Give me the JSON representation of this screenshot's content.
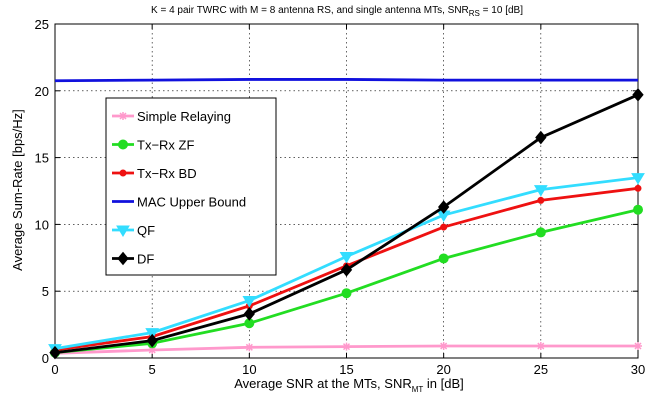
{
  "chart_data": {
    "type": "line",
    "title_main": "K = 4 pair TWRC with M = 8 antenna RS, and single antenna MTs, SNR",
    "title_sub": "RS",
    "title_tail": " = 10 [dB]",
    "xlabel_main": "Average SNR at the MTs, SNR",
    "xlabel_sub": "MT",
    "xlabel_tail": " in [dB]",
    "ylabel": "Average Sum-Rate [bps/Hz]",
    "xlim": [
      0,
      30
    ],
    "ylim": [
      0,
      25
    ],
    "xticks": [
      0,
      5,
      10,
      15,
      20,
      25,
      30
    ],
    "yticks": [
      0,
      5,
      10,
      15,
      20,
      25
    ],
    "grid": true,
    "legend_position": "upper-left",
    "x": [
      0,
      5,
      10,
      15,
      20,
      25,
      30
    ],
    "series": [
      {
        "name": "Simple Relaying",
        "color": "#ff99cc",
        "marker": "star",
        "values": [
          0.35,
          0.6,
          0.8,
          0.85,
          0.9,
          0.9,
          0.9
        ]
      },
      {
        "name": "Tx−Rx ZF",
        "color": "#22dd22",
        "marker": "circle",
        "values": [
          0.4,
          1.1,
          2.6,
          4.85,
          7.45,
          9.4,
          11.1
        ]
      },
      {
        "name": "Tx−Rx BD",
        "color": "#ee1111",
        "marker": "dot",
        "values": [
          0.6,
          1.6,
          3.9,
          6.9,
          9.8,
          11.8,
          12.7
        ]
      },
      {
        "name": "MAC Upper Bound",
        "color": "#1111dd",
        "marker": "none",
        "values": [
          20.75,
          20.8,
          20.85,
          20.85,
          20.8,
          20.8,
          20.8
        ]
      },
      {
        "name": "QF",
        "color": "#33ddff",
        "marker": "triangle-down",
        "values": [
          0.7,
          1.9,
          4.3,
          7.6,
          10.7,
          12.6,
          13.5
        ]
      },
      {
        "name": "DF",
        "color": "#000000",
        "marker": "diamond",
        "values": [
          0.4,
          1.3,
          3.3,
          6.6,
          11.3,
          16.5,
          19.7
        ]
      }
    ]
  }
}
